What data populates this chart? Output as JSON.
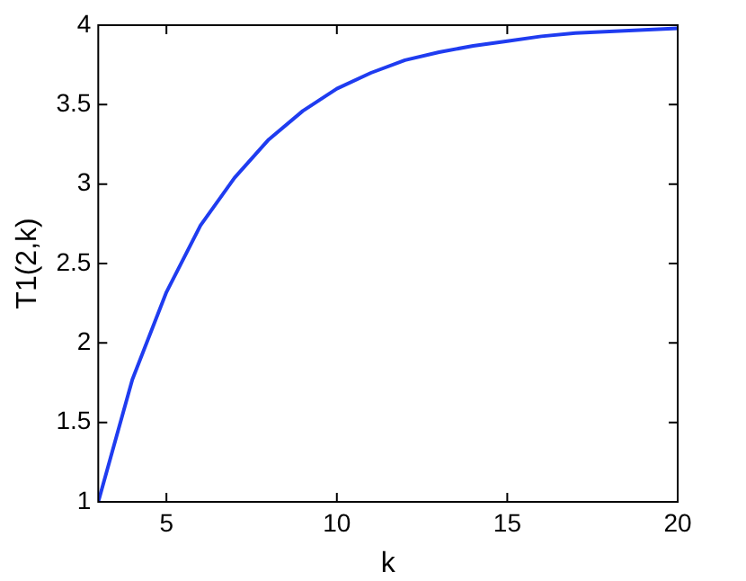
{
  "chart_data": {
    "type": "line",
    "xlabel": "k",
    "ylabel": "T1(2,k)",
    "x": [
      3,
      4,
      5,
      6,
      7,
      8,
      9,
      10,
      11,
      12,
      13,
      14,
      15,
      16,
      17,
      18,
      19,
      20
    ],
    "series": [
      {
        "color": "#1f3cf0",
        "values": [
          1,
          1.77,
          2.32,
          2.74,
          3.04,
          3.28,
          3.46,
          3.6,
          3.7,
          3.78,
          3.83,
          3.87,
          3.9,
          3.93,
          3.95,
          3.96,
          3.97,
          3.98
        ]
      }
    ],
    "xlim": [
      3,
      20
    ],
    "xticks": [
      5,
      10,
      15,
      20
    ],
    "ylim": [
      1,
      4
    ],
    "yticks": [
      1,
      1.5,
      2,
      2.5,
      3,
      3.5,
      4
    ],
    "grid": false,
    "legend": false,
    "marker": "none",
    "line_style": "solid"
  }
}
